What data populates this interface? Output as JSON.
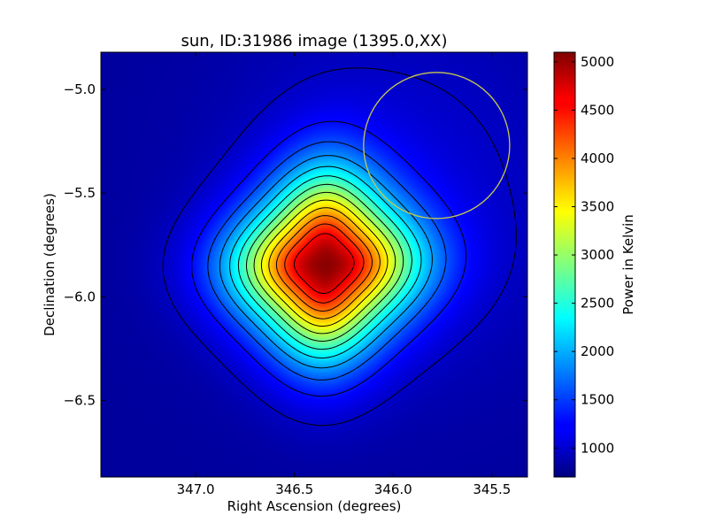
{
  "chart_data": {
    "type": "heatmap",
    "title": "sun, ID:31986 image (1395.0,XX)",
    "xlabel": "Right Ascension (degrees)",
    "ylabel": "Declination (degrees)",
    "colorbar_label": "Power in Kelvin",
    "xlim": [
      347.48,
      345.32
    ],
    "ylim": [
      -6.87,
      -4.82
    ],
    "x_ticks": [
      347.0,
      346.5,
      346.0,
      345.5
    ],
    "x_tick_labels": [
      "347.0",
      "346.5",
      "346.0",
      "345.5"
    ],
    "y_ticks": [
      -5.0,
      -5.5,
      -6.0,
      -6.5
    ],
    "y_tick_labels": [
      "−5.0",
      "−5.5",
      "−6.0",
      "−6.5"
    ],
    "colorbar_range": [
      700,
      5100
    ],
    "colorbar_ticks": [
      1000,
      1500,
      2000,
      2500,
      3000,
      3500,
      4000,
      4500,
      5000
    ],
    "colorbar_tick_labels": [
      "1000",
      "1500",
      "2000",
      "2500",
      "3000",
      "3500",
      "4000",
      "4500",
      "5000"
    ],
    "colormap": "jet",
    "peak": {
      "ra": 346.35,
      "dec": -5.84,
      "value": 5050
    },
    "circle": {
      "ra": 345.78,
      "dec": -5.27,
      "radius_deg": 0.37,
      "color": "#c8c850"
    },
    "contour_color": "#000000",
    "grid": false
  }
}
